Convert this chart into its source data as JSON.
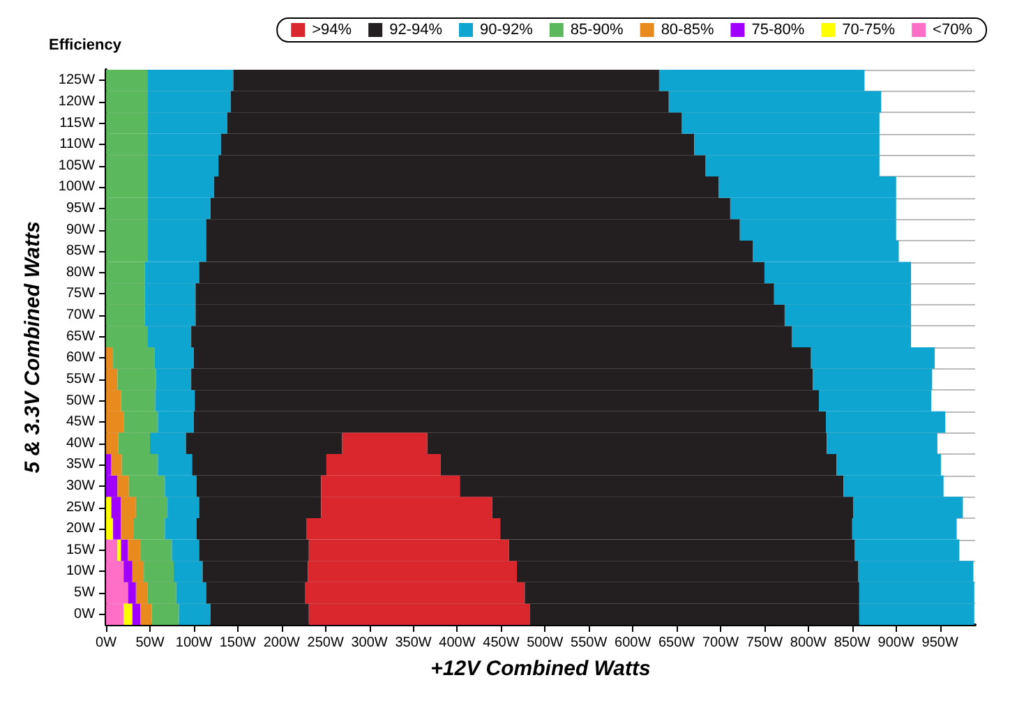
{
  "chart_data": {
    "type": "bar",
    "orientation": "horizontal",
    "stacked": true,
    "title": "Efficiency",
    "xlabel": "+12V Combined Watts",
    "ylabel": "5 & 3.3V Combined Watts",
    "categories": [
      "125W",
      "120W",
      "115W",
      "110W",
      "105W",
      "100W",
      "95W",
      "90W",
      "85W",
      "80W",
      "75W",
      "70W",
      "65W",
      "60W",
      "55W",
      "50W",
      "45W",
      "40W",
      "35W",
      "30W",
      "25W",
      "20W",
      "15W",
      "10W",
      "5W",
      "0W"
    ],
    "series": [
      {
        "name": "<70%",
        "color": "#ff6ec7",
        "values": [
          0,
          0,
          0,
          0,
          0,
          0,
          0,
          0,
          0,
          0,
          0,
          0,
          0,
          0,
          0,
          0,
          0,
          0,
          0,
          0,
          0,
          0,
          13,
          20,
          25,
          20
        ]
      },
      {
        "name": "70-75%",
        "color": "#ffff00",
        "values": [
          0,
          0,
          0,
          0,
          0,
          0,
          0,
          0,
          0,
          0,
          0,
          0,
          0,
          0,
          0,
          0,
          0,
          0,
          0,
          0,
          6,
          8,
          4,
          0,
          0,
          10
        ]
      },
      {
        "name": "75-80%",
        "color": "#a000ff",
        "values": [
          0,
          0,
          0,
          0,
          0,
          0,
          0,
          0,
          0,
          0,
          0,
          0,
          0,
          0,
          0,
          0,
          0,
          0,
          6,
          13,
          11,
          9,
          8,
          10,
          9,
          9
        ]
      },
      {
        "name": "80-85%",
        "color": "#e88a1e",
        "values": [
          0,
          0,
          0,
          0,
          0,
          0,
          0,
          0,
          0,
          0,
          0,
          0,
          0,
          8,
          13,
          17,
          20,
          14,
          12,
          13,
          17,
          14,
          14,
          13,
          13,
          13
        ]
      },
      {
        "name": "85-90%",
        "color": "#5cb85c",
        "values": [
          47,
          47,
          47,
          47,
          47,
          47,
          47,
          47,
          47,
          44,
          44,
          44,
          47,
          47,
          44,
          39,
          39,
          36,
          41,
          41,
          36,
          36,
          36,
          34,
          33,
          31
        ]
      },
      {
        "name": "90-92%",
        "color": "#0ea5d0",
        "values": [
          98,
          95,
          91,
          84,
          81,
          76,
          72,
          67,
          67,
          62,
          58,
          58,
          50,
          45,
          40,
          45,
          41,
          41,
          39,
          36,
          36,
          36,
          31,
          33,
          34,
          36
        ]
      },
      {
        "name": "92-94%",
        "color": "#231f20",
        "values": [
          485,
          499,
          518,
          539,
          555,
          575,
          592,
          608,
          623,
          644,
          659,
          671,
          684,
          703,
          708,
          711,
          720,
          178,
          153,
          142,
          139,
          125,
          125,
          120,
          113,
          112
        ]
      },
      {
        "name": ">94%",
        "color": "#d9272d",
        "values": [
          0,
          0,
          0,
          0,
          0,
          0,
          0,
          0,
          0,
          0,
          0,
          0,
          0,
          0,
          0,
          0,
          0,
          97,
          130,
          158,
          195,
          221,
          228,
          238,
          250,
          252
        ]
      },
      {
        "color": "#231f20",
        "values": [
          0,
          0,
          0,
          0,
          0,
          0,
          0,
          0,
          0,
          0,
          0,
          0,
          0,
          0,
          0,
          0,
          0,
          455,
          451,
          437,
          411,
          401,
          394,
          389,
          381,
          375
        ]
      },
      {
        "color": "#0ea5d0",
        "values": [
          234,
          242,
          225,
          211,
          198,
          202,
          189,
          178,
          166,
          167,
          156,
          144,
          136,
          141,
          136,
          128,
          136,
          126,
          119,
          114,
          125,
          119,
          119,
          131,
          131,
          131
        ]
      }
    ],
    "xlim": [
      0,
      990
    ],
    "xticks": [
      {
        "value": 0,
        "label": "0W"
      },
      {
        "value": 50,
        "label": "50W"
      },
      {
        "value": 100,
        "label": "100W"
      },
      {
        "value": 150,
        "label": "150W"
      },
      {
        "value": 200,
        "label": "200W"
      },
      {
        "value": 250,
        "label": "250W"
      },
      {
        "value": 300,
        "label": "300W"
      },
      {
        "value": 350,
        "label": "350W"
      },
      {
        "value": 400,
        "label": "400W"
      },
      {
        "value": 450,
        "label": "450W"
      },
      {
        "value": 500,
        "label": "500W"
      },
      {
        "value": 550,
        "label": "550W"
      },
      {
        "value": 600,
        "label": "600W"
      },
      {
        "value": 650,
        "label": "650W"
      },
      {
        "value": 700,
        "label": "700W"
      },
      {
        "value": 750,
        "label": "750W"
      },
      {
        "value": 800,
        "label": "800W"
      },
      {
        "value": 850,
        "label": "850W"
      },
      {
        "value": 900,
        "label": "900W"
      },
      {
        "value": 950,
        "label": "950W"
      }
    ],
    "grid": "y",
    "legend": "top right"
  }
}
